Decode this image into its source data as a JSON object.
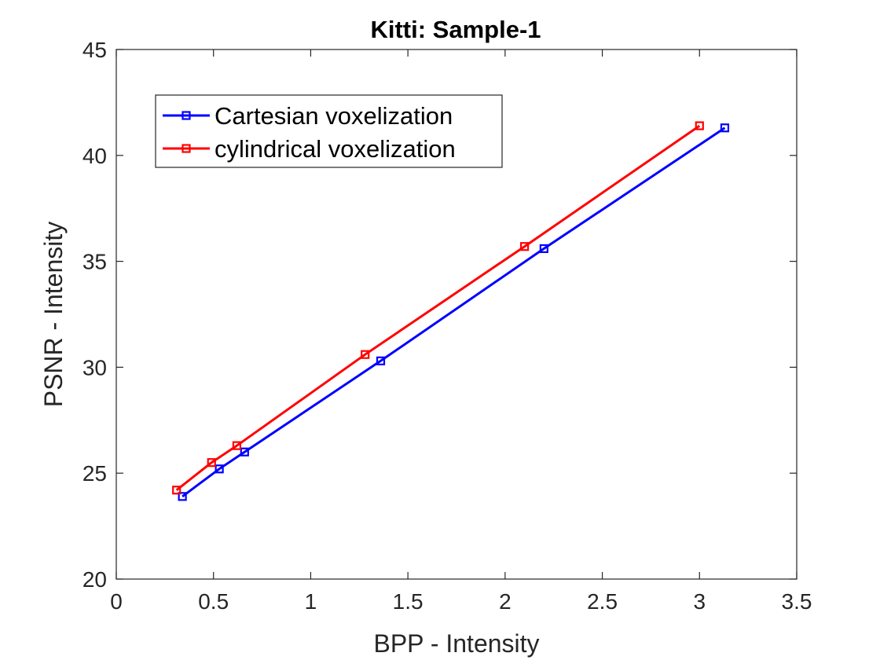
{
  "chart_data": {
    "type": "line",
    "title": "Kitti: Sample-1",
    "xlabel": "BPP - Intensity",
    "ylabel": "PSNR - Intensity",
    "xlim": [
      0,
      3.5
    ],
    "ylim": [
      20,
      45
    ],
    "xticks": [
      0,
      0.5,
      1,
      1.5,
      2,
      2.5,
      3,
      3.5
    ],
    "xtick_labels": [
      "0",
      "0.5",
      "1",
      "1.5",
      "2",
      "2.5",
      "3",
      "3.5"
    ],
    "yticks": [
      20,
      25,
      30,
      35,
      40,
      45
    ],
    "ytick_labels": [
      "20",
      "25",
      "30",
      "35",
      "40",
      "45"
    ],
    "grid": false,
    "legend_position": "top-left",
    "series": [
      {
        "name": "Cartesian voxelization",
        "color": "#0000ff",
        "marker": "square",
        "x": [
          0.34,
          0.53,
          0.66,
          1.36,
          2.2,
          3.13
        ],
        "y": [
          23.9,
          25.2,
          26.0,
          30.3,
          35.6,
          41.3
        ]
      },
      {
        "name": "cylindrical voxelization",
        "color": "#ff0000",
        "marker": "square",
        "x": [
          0.31,
          0.49,
          0.62,
          1.28,
          2.1,
          3.0
        ],
        "y": [
          24.2,
          25.5,
          26.3,
          30.6,
          35.7,
          41.4
        ]
      }
    ]
  }
}
